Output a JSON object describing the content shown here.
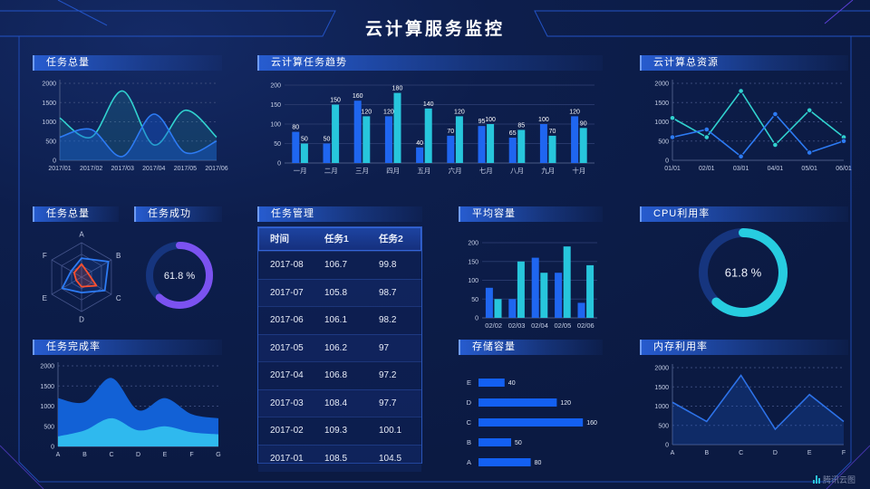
{
  "title": "云计算服务监控",
  "watermark": {
    "text": "腾讯云图"
  },
  "theme": {
    "background": "#0d1e4c",
    "header_gradient": "#285fd6",
    "tick_text": "#c6cfe6",
    "axis": "#4a5a85",
    "grid_dashed": "#39497a",
    "grid_solid": "#27386b",
    "accent_blue": "#1f66f0",
    "accent_cyan": "#27c6dc",
    "accent_purple": "#7b52f0",
    "accent_red": "#ff4f2e"
  },
  "chart_data": [
    {
      "id": "task-total-line",
      "type": "area",
      "title": "任务总量",
      "x": [
        "2017/01",
        "2017/02",
        "2017/03",
        "2017/04",
        "2017/05",
        "2017/06"
      ],
      "yticks": [
        0,
        500,
        1000,
        1500,
        2000
      ],
      "ylim": [
        0,
        2000
      ],
      "grid": "dashed",
      "smooth": true,
      "series": [
        {
          "name": "cyan",
          "color": "#31d2cf",
          "fill": "rgba(49,210,207,0.14)",
          "values": [
            1100,
            600,
            1800,
            400,
            1300,
            600
          ]
        },
        {
          "name": "blue",
          "color": "#2d7bf4",
          "fill": "rgba(25,90,210,0.42)",
          "values": [
            600,
            800,
            100,
            1200,
            200,
            500
          ]
        }
      ]
    },
    {
      "id": "cloud-task-trend",
      "type": "bar",
      "title": "云计算任务趋势",
      "categories": [
        "一月",
        "二月",
        "三月",
        "四月",
        "五月",
        "六月",
        "七月",
        "八月",
        "九月",
        "十月"
      ],
      "yticks": [
        0,
        50,
        100,
        150,
        200
      ],
      "ylim": [
        0,
        200
      ],
      "value_labels": true,
      "series": [
        {
          "name": "blue",
          "color": "#1f66f0",
          "values": [
            80,
            50,
            160,
            120,
            40,
            70,
            95,
            65,
            100,
            120
          ]
        },
        {
          "name": "cyan",
          "color": "#27c6dc",
          "values": [
            50,
            150,
            120,
            180,
            140,
            120,
            100,
            85,
            70,
            90
          ]
        }
      ]
    },
    {
      "id": "cloud-total-resource",
      "type": "line",
      "title": "云计算总资源",
      "x": [
        "01/01",
        "02/01",
        "03/01",
        "04/01",
        "05/01",
        "06/01"
      ],
      "yticks": [
        0,
        500,
        1000,
        1500,
        2000
      ],
      "ylim": [
        0,
        2000
      ],
      "grid": "dashed",
      "series": [
        {
          "name": "cyan",
          "color": "#31d2cf",
          "markers": true,
          "values": [
            1100,
            600,
            1800,
            400,
            1300,
            600
          ]
        },
        {
          "name": "blue",
          "color": "#2d7bf4",
          "markers": true,
          "values": [
            600,
            800,
            100,
            1200,
            200,
            500
          ]
        }
      ]
    },
    {
      "id": "task-total-radar",
      "type": "radar",
      "title": "任务总量",
      "axes": [
        "A",
        "B",
        "C",
        "D",
        "E",
        "F"
      ],
      "max": 100,
      "series": [
        {
          "name": "blue",
          "color": "#2d7bf4",
          "fill": "rgba(45,123,244,0.12)",
          "values": [
            55,
            90,
            78,
            45,
            65,
            35
          ]
        },
        {
          "name": "red",
          "color": "#ff4f2e",
          "fill": "rgba(255,79,46,0.18)",
          "values": [
            38,
            22,
            50,
            28,
            18,
            25
          ]
        }
      ]
    },
    {
      "id": "task-success-gauge",
      "type": "donut",
      "title": "任务成功",
      "value": 61.8,
      "label": "61.8 %",
      "color": "#7b52f0",
      "track": "#16357e"
    },
    {
      "id": "task-table",
      "type": "table",
      "title": "任务管理",
      "columns": [
        "时间",
        "任务1",
        "任务2"
      ],
      "rows": [
        [
          "2017-08",
          "106.7",
          "99.8"
        ],
        [
          "2017-07",
          "105.8",
          "98.7"
        ],
        [
          "2017-06",
          "106.1",
          "98.2"
        ],
        [
          "2017-05",
          "106.2",
          "97"
        ],
        [
          "2017-04",
          "106.8",
          "97.2"
        ],
        [
          "2017-03",
          "108.4",
          "97.7"
        ],
        [
          "2017-02",
          "109.3",
          "100.1"
        ],
        [
          "2017-01",
          "108.5",
          "104.5"
        ]
      ]
    },
    {
      "id": "avg-capacity",
      "type": "bar",
      "title": "平均容量",
      "categories": [
        "02/02",
        "02/03",
        "02/04",
        "02/05",
        "02/06"
      ],
      "yticks": [
        0,
        50,
        100,
        150,
        200
      ],
      "ylim": [
        0,
        200
      ],
      "value_labels": false,
      "series": [
        {
          "name": "blue",
          "color": "#1f66f0",
          "values": [
            80,
            50,
            160,
            120,
            40
          ]
        },
        {
          "name": "cyan",
          "color": "#27c6dc",
          "values": [
            50,
            150,
            120,
            190,
            140
          ]
        }
      ]
    },
    {
      "id": "cpu-gauge",
      "type": "donut",
      "title": "CPU利用率",
      "value": 61.8,
      "label": "61.8 %",
      "color": "#27cde0",
      "track": "#16357e"
    },
    {
      "id": "task-completion",
      "type": "stacked-area",
      "title": "任务完成率",
      "x": [
        "A",
        "B",
        "C",
        "D",
        "E",
        "F",
        "G"
      ],
      "yticks": [
        0,
        500,
        1000,
        1500,
        2000
      ],
      "ylim": [
        0,
        2000
      ],
      "grid": "dashed",
      "smooth": true,
      "series": [
        {
          "name": "blue",
          "color": "#1261d6",
          "values": [
            1200,
            1100,
            1700,
            900,
            1200,
            800,
            700
          ]
        },
        {
          "name": "cyan",
          "color": "#2fb9ee",
          "values": [
            250,
            400,
            700,
            400,
            500,
            350,
            300
          ]
        }
      ]
    },
    {
      "id": "storage-capacity",
      "type": "hbar",
      "title": "存储容量",
      "categories": [
        "E",
        "D",
        "C",
        "B",
        "A"
      ],
      "values": [
        40,
        120,
        160,
        50,
        80
      ],
      "color": "#1360f2",
      "max": 200
    },
    {
      "id": "memory-usage",
      "type": "line",
      "title": "内存利用率",
      "x": [
        "A",
        "B",
        "C",
        "D",
        "E",
        "F"
      ],
      "yticks": [
        0,
        500,
        1000,
        1500,
        2000
      ],
      "ylim": [
        0,
        2000
      ],
      "grid": "dashed",
      "series": [
        {
          "name": "blue",
          "color": "#2d72e8",
          "fill": "rgba(30,90,200,0.28)",
          "values": [
            1100,
            600,
            1800,
            400,
            1300,
            600
          ]
        }
      ]
    }
  ]
}
